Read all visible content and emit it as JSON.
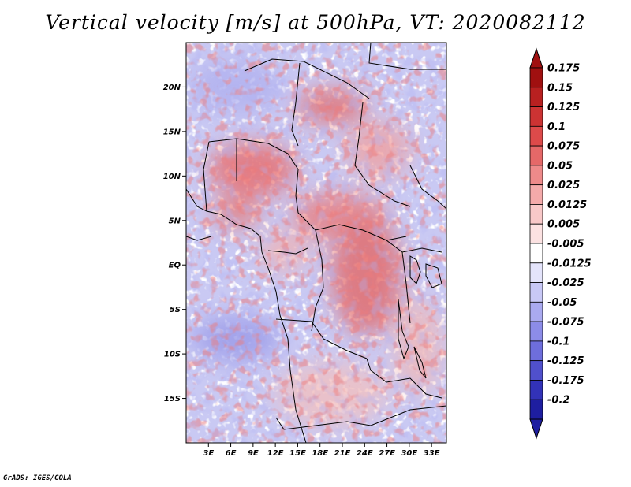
{
  "title": "Vertical velocity [m/s] at 500hPa, VT: 2020082112",
  "credit": "GrADS: IGES/COLA",
  "map": {
    "lon_range": [
      0,
      35
    ],
    "lat_range": [
      -20,
      25
    ],
    "lat_ticks": [
      {
        "value": 20,
        "label": "20N"
      },
      {
        "value": 15,
        "label": "15N"
      },
      {
        "value": 10,
        "label": "10N"
      },
      {
        "value": 5,
        "label": "5N"
      },
      {
        "value": 0,
        "label": "EQ"
      },
      {
        "value": -5,
        "label": "5S"
      },
      {
        "value": -10,
        "label": "10S"
      },
      {
        "value": -15,
        "label": "15S"
      }
    ],
    "lon_ticks": [
      {
        "value": 3,
        "label": "3E"
      },
      {
        "value": 6,
        "label": "6E"
      },
      {
        "value": 9,
        "label": "9E"
      },
      {
        "value": 12,
        "label": "12E"
      },
      {
        "value": 15,
        "label": "15E"
      },
      {
        "value": 18,
        "label": "18E"
      },
      {
        "value": 21,
        "label": "21E"
      },
      {
        "value": 24,
        "label": "24E"
      },
      {
        "value": 27,
        "label": "27E"
      },
      {
        "value": 30,
        "label": "30E"
      },
      {
        "value": 33,
        "label": "33E"
      }
    ]
  },
  "colorbar": {
    "levels": [
      {
        "label": "0.175",
        "color": "#a01010"
      },
      {
        "label": "0.15",
        "color": "#b82020"
      },
      {
        "label": "0.125",
        "color": "#cc3333"
      },
      {
        "label": "0.1",
        "color": "#dd4a4a"
      },
      {
        "label": "0.075",
        "color": "#e56868"
      },
      {
        "label": "0.05",
        "color": "#ee8a8a"
      },
      {
        "label": "0.025",
        "color": "#f4aaaa"
      },
      {
        "label": "0.0125",
        "color": "#f8c8c8"
      },
      {
        "label": "0.005",
        "color": "#fce2e2"
      },
      {
        "label": "-0.005",
        "color": "#ffffff"
      },
      {
        "label": "-0.0125",
        "color": "#e4e4fb"
      },
      {
        "label": "-0.025",
        "color": "#c8c8f6"
      },
      {
        "label": "-0.05",
        "color": "#aaaaf0"
      },
      {
        "label": "-0.075",
        "color": "#8c8ce8"
      },
      {
        "label": "-0.1",
        "color": "#6e6edc"
      },
      {
        "label": "-0.125",
        "color": "#5050cc"
      },
      {
        "label": "-0.175",
        "color": "#3232b8"
      },
      {
        "label": "-0.2",
        "color": "#1e1ea0"
      }
    ],
    "top_color": "#a01010",
    "bottom_color": "#1e1ea0"
  }
}
